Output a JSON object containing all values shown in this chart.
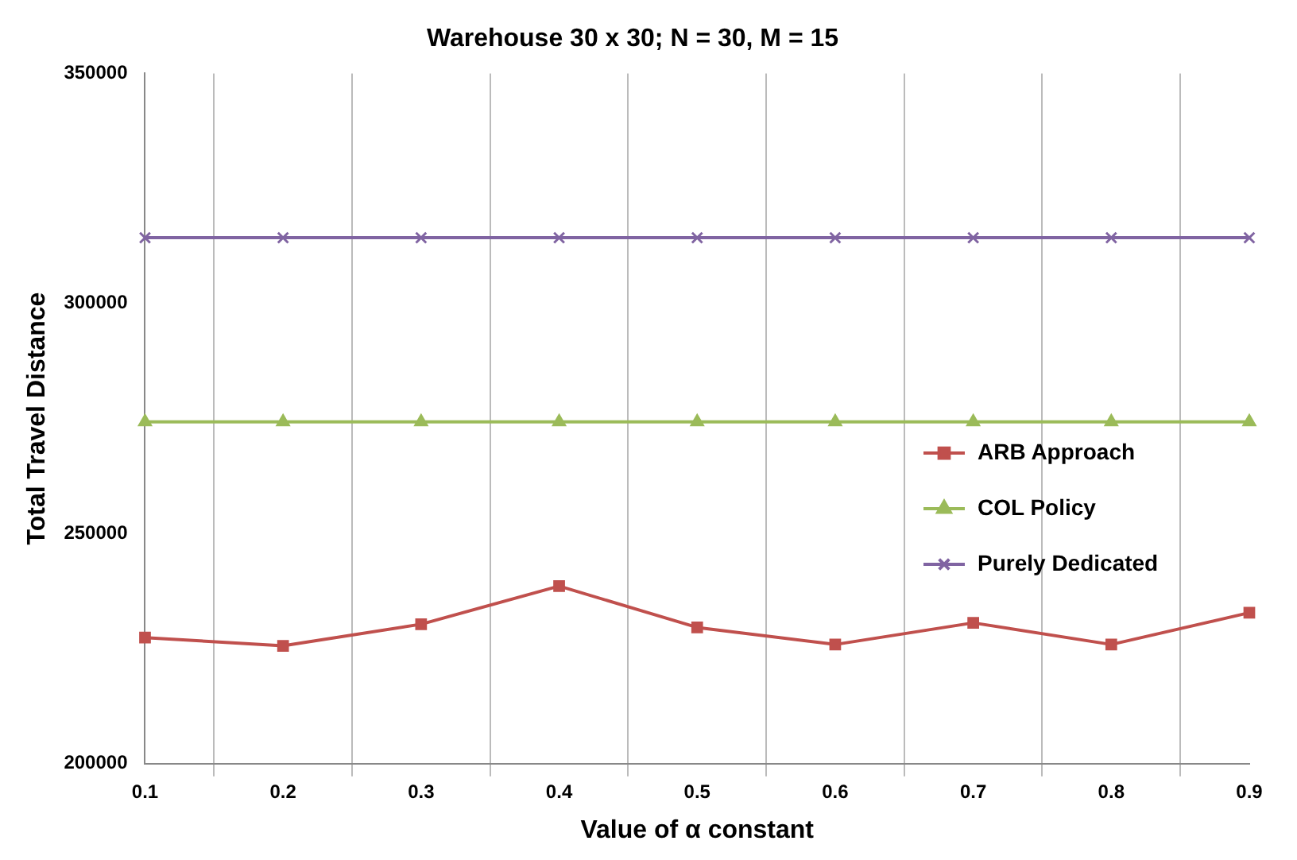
{
  "chart_data": {
    "type": "line",
    "title": "Warehouse 30 x 30; N = 30, M = 15",
    "xlabel": "Value of α constant",
    "ylabel": "Total Travel Distance",
    "categories": [
      "0.1",
      "0.2",
      "0.3",
      "0.4",
      "0.5",
      "0.6",
      "0.7",
      "0.8",
      "0.9"
    ],
    "series": [
      {
        "name": "ARB Approach",
        "color": "#c0504d",
        "marker": "square",
        "values": [
          227400,
          225600,
          230300,
          238600,
          229600,
          225900,
          230600,
          225900,
          232800
        ]
      },
      {
        "name": "COL Policy",
        "color": "#9bbb59",
        "marker": "triangle",
        "values": [
          274300,
          274300,
          274300,
          274300,
          274300,
          274300,
          274300,
          274300,
          274300
        ]
      },
      {
        "name": "Purely Dedicated",
        "color": "#8064a2",
        "marker": "cross",
        "values": [
          314300,
          314300,
          314300,
          314300,
          314300,
          314300,
          314300,
          314300,
          314300
        ]
      }
    ],
    "ylim": [
      200000,
      350000
    ],
    "yticks": [
      200000,
      250000,
      300000,
      350000
    ],
    "grid": "x",
    "legend": "right",
    "line_style": "solid"
  }
}
